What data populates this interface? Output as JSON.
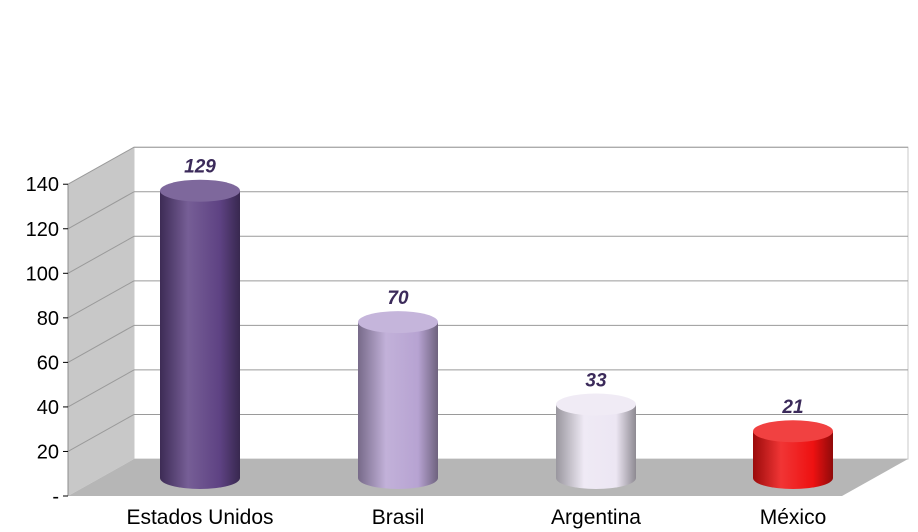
{
  "chart_data": {
    "type": "bar",
    "style": "3d-cylinder",
    "categories": [
      "Estados Unidos",
      "Brasil",
      "Argentina",
      "México"
    ],
    "values": [
      129,
      70,
      33,
      21
    ],
    "data_labels": [
      "129",
      "70",
      "33",
      "21"
    ],
    "colors": [
      "#5e4283",
      "#b7a3d2",
      "#ece6f3",
      "#ee1111"
    ],
    "ylim": [
      0,
      140
    ],
    "yticks": [
      {
        "value": 0,
        "label": "-"
      },
      {
        "value": 20,
        "label": "20"
      },
      {
        "value": 40,
        "label": "40"
      },
      {
        "value": 60,
        "label": "60"
      },
      {
        "value": 80,
        "label": "80"
      },
      {
        "value": 100,
        "label": "100"
      },
      {
        "value": 120,
        "label": "120"
      },
      {
        "value": 140,
        "label": "140"
      }
    ],
    "grid": true,
    "legend": "none",
    "wall_color": "#ffffff",
    "floor_color": "#b6b6b6",
    "side_wall_color": "#c8c8c8",
    "title": "",
    "xlabel": "",
    "ylabel": ""
  }
}
